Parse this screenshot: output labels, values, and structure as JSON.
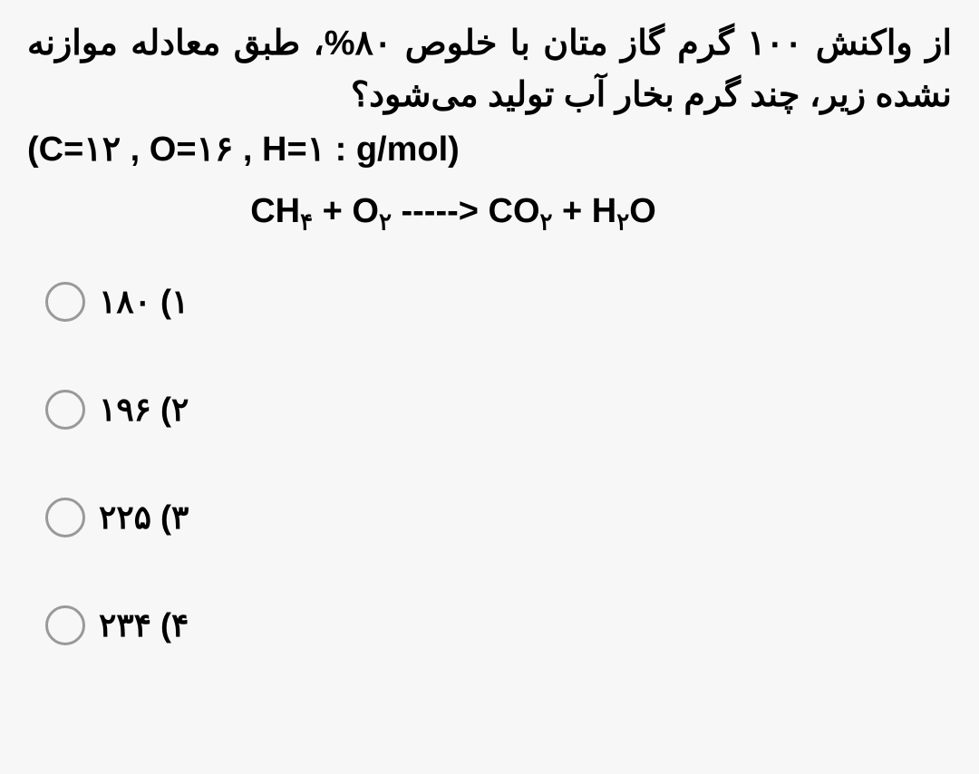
{
  "question": {
    "text": "از واکنش ۱۰۰ گرم گاز متان با خلوص ۸۰%، طبق معادله موازنه نشده زیر، چند گرم بخار آب تولید می‌شود؟",
    "molar_mass": "(C=۱۲ , O=۱۶ , H=۱ : g/mol)"
  },
  "equation": {
    "ch4": "CH",
    "ch4_sub": "۴",
    "o2": "O",
    "o2_sub": "۲",
    "arrow": "----->",
    "co2": "CO",
    "co2_sub": "۲",
    "h2o": "H",
    "h2o_sub": "۲",
    "o": "O"
  },
  "options": [
    {
      "label": "۱)",
      "value": "۱۸۰"
    },
    {
      "label": "۲)",
      "value": "۱۹۶"
    },
    {
      "label": "۳)",
      "value": "۲۲۵"
    },
    {
      "label": "۴)",
      "value": "۲۳۴"
    }
  ],
  "colors": {
    "background": "#f7f7f7",
    "text": "#000000",
    "radio_border": "#999999"
  },
  "styling": {
    "question_fontsize": 38,
    "option_fontsize": 36,
    "sub_fontsize": 26,
    "radio_size": 44,
    "option_gap": 75
  }
}
